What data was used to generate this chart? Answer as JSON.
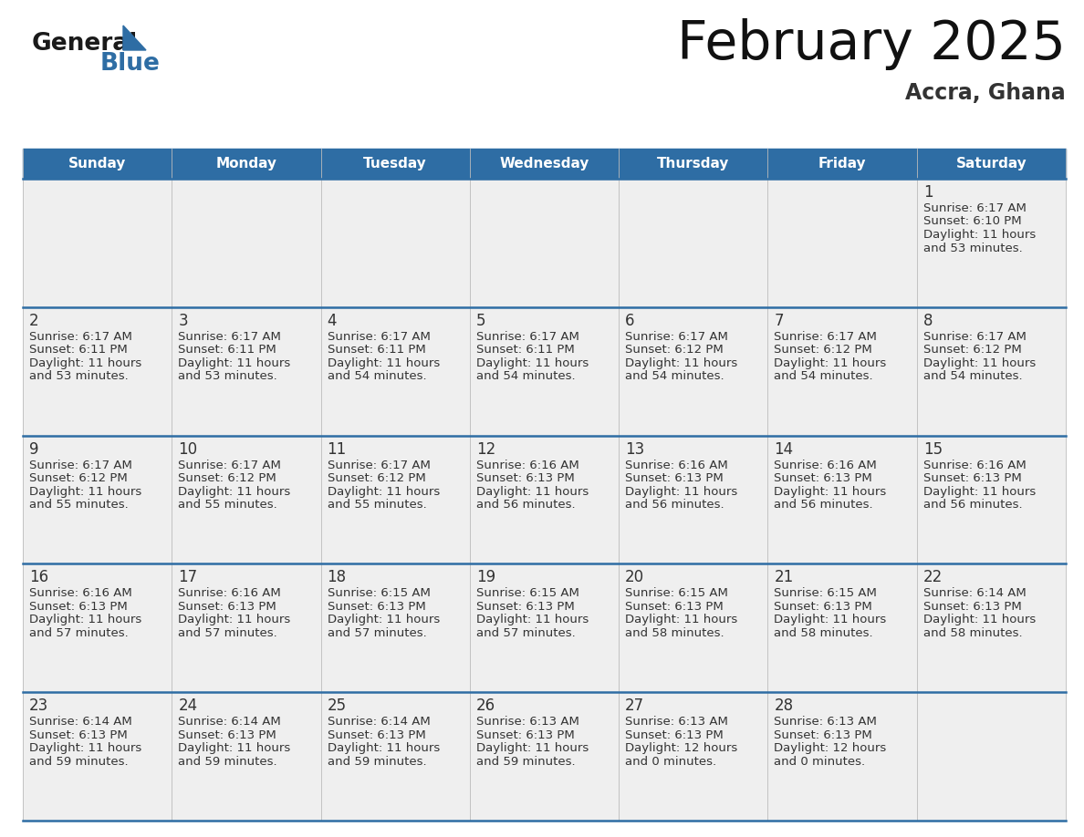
{
  "title": "February 2025",
  "subtitle": "Accra, Ghana",
  "header_bg": "#2E6DA4",
  "header_text_color": "#FFFFFF",
  "cell_bg": "#EFEFEF",
  "day_number_color": "#333333",
  "cell_text_color": "#333333",
  "grid_line_color": "#2E6DA4",
  "days_of_week": [
    "Sunday",
    "Monday",
    "Tuesday",
    "Wednesday",
    "Thursday",
    "Friday",
    "Saturday"
  ],
  "calendar_data": [
    [
      null,
      null,
      null,
      null,
      null,
      null,
      1
    ],
    [
      2,
      3,
      4,
      5,
      6,
      7,
      8
    ],
    [
      9,
      10,
      11,
      12,
      13,
      14,
      15
    ],
    [
      16,
      17,
      18,
      19,
      20,
      21,
      22
    ],
    [
      23,
      24,
      25,
      26,
      27,
      28,
      null
    ]
  ],
  "sunrise_data": {
    "1": "6:17 AM",
    "2": "6:17 AM",
    "3": "6:17 AM",
    "4": "6:17 AM",
    "5": "6:17 AM",
    "6": "6:17 AM",
    "7": "6:17 AM",
    "8": "6:17 AM",
    "9": "6:17 AM",
    "10": "6:17 AM",
    "11": "6:17 AM",
    "12": "6:16 AM",
    "13": "6:16 AM",
    "14": "6:16 AM",
    "15": "6:16 AM",
    "16": "6:16 AM",
    "17": "6:16 AM",
    "18": "6:15 AM",
    "19": "6:15 AM",
    "20": "6:15 AM",
    "21": "6:15 AM",
    "22": "6:14 AM",
    "23": "6:14 AM",
    "24": "6:14 AM",
    "25": "6:14 AM",
    "26": "6:13 AM",
    "27": "6:13 AM",
    "28": "6:13 AM"
  },
  "sunset_data": {
    "1": "6:10 PM",
    "2": "6:11 PM",
    "3": "6:11 PM",
    "4": "6:11 PM",
    "5": "6:11 PM",
    "6": "6:12 PM",
    "7": "6:12 PM",
    "8": "6:12 PM",
    "9": "6:12 PM",
    "10": "6:12 PM",
    "11": "6:12 PM",
    "12": "6:13 PM",
    "13": "6:13 PM",
    "14": "6:13 PM",
    "15": "6:13 PM",
    "16": "6:13 PM",
    "17": "6:13 PM",
    "18": "6:13 PM",
    "19": "6:13 PM",
    "20": "6:13 PM",
    "21": "6:13 PM",
    "22": "6:13 PM",
    "23": "6:13 PM",
    "24": "6:13 PM",
    "25": "6:13 PM",
    "26": "6:13 PM",
    "27": "6:13 PM",
    "28": "6:13 PM"
  },
  "daylight_line1": {
    "1": "11 hours",
    "2": "11 hours",
    "3": "11 hours",
    "4": "11 hours",
    "5": "11 hours",
    "6": "11 hours",
    "7": "11 hours",
    "8": "11 hours",
    "9": "11 hours",
    "10": "11 hours",
    "11": "11 hours",
    "12": "11 hours",
    "13": "11 hours",
    "14": "11 hours",
    "15": "11 hours",
    "16": "11 hours",
    "17": "11 hours",
    "18": "11 hours",
    "19": "11 hours",
    "20": "11 hours",
    "21": "11 hours",
    "22": "11 hours",
    "23": "11 hours",
    "24": "11 hours",
    "25": "11 hours",
    "26": "11 hours",
    "27": "12 hours",
    "28": "12 hours"
  },
  "daylight_line2": {
    "1": "and 53 minutes.",
    "2": "and 53 minutes.",
    "3": "and 53 minutes.",
    "4": "and 54 minutes.",
    "5": "and 54 minutes.",
    "6": "and 54 minutes.",
    "7": "and 54 minutes.",
    "8": "and 54 minutes.",
    "9": "and 55 minutes.",
    "10": "and 55 minutes.",
    "11": "and 55 minutes.",
    "12": "and 56 minutes.",
    "13": "and 56 minutes.",
    "14": "and 56 minutes.",
    "15": "and 56 minutes.",
    "16": "and 57 minutes.",
    "17": "and 57 minutes.",
    "18": "and 57 minutes.",
    "19": "and 57 minutes.",
    "20": "and 58 minutes.",
    "21": "and 58 minutes.",
    "22": "and 58 minutes.",
    "23": "and 59 minutes.",
    "24": "and 59 minutes.",
    "25": "and 59 minutes.",
    "26": "and 59 minutes.",
    "27": "and 0 minutes.",
    "28": "and 0 minutes."
  }
}
